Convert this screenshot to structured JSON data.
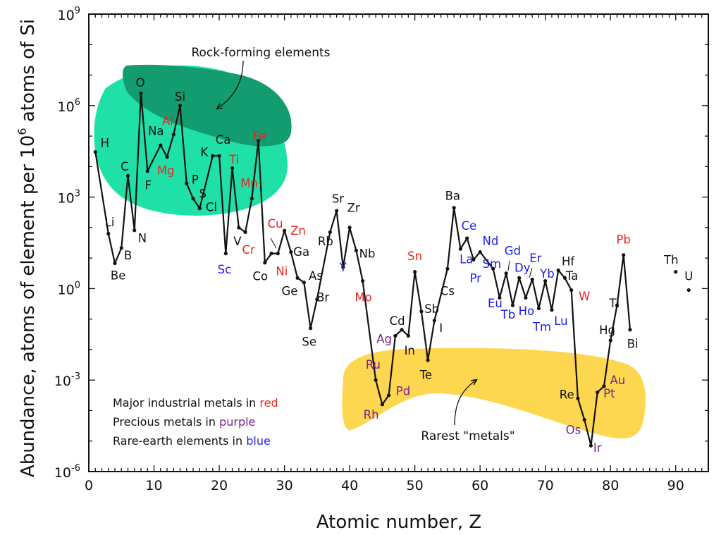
{
  "chart_data": {
    "type": "line",
    "title": "",
    "xlabel": "Atomic number, Z",
    "ylabel_parts": [
      "Abundance, atoms of element per 10",
      "6",
      " atoms of Si"
    ],
    "xlim": [
      0,
      95
    ],
    "ylim_log10": [
      -6,
      9
    ],
    "x_ticks": [
      0,
      10,
      20,
      30,
      40,
      50,
      60,
      70,
      80,
      90
    ],
    "y_ticks": [
      {
        "base": "10",
        "exp": "9",
        "value": 9
      },
      {
        "base": "10",
        "exp": "6",
        "value": 6
      },
      {
        "base": "10",
        "exp": "3",
        "value": 3
      },
      {
        "base": "10",
        "exp": "0",
        "value": 0
      },
      {
        "base": "10",
        "exp": "-3",
        "value": -3
      },
      {
        "base": "10",
        "exp": "-6",
        "value": -6
      }
    ],
    "colors": {
      "standard": "#111111",
      "industrial": "#e8251f",
      "precious": "#7a1f8c",
      "rare_earth": "#1a1ee8",
      "rock_light": "#1fe0a6",
      "rock_dark": "#139c70",
      "rare_metals": "#fed751"
    },
    "series": [
      {
        "name": "main",
        "points": [
          {
            "z": 1,
            "el": "H",
            "log": 4.48,
            "cat": "standard",
            "lx": 1.8,
            "ly": 4.78,
            "anchor": "start"
          },
          {
            "z": 3,
            "el": "Li",
            "log": 1.8,
            "cat": "standard",
            "lx": 3.2,
            "ly": 2.18,
            "anchor": "middle"
          },
          {
            "z": 4,
            "el": "Be",
            "log": 0.83,
            "cat": "standard",
            "lx": 4.5,
            "ly": 0.44,
            "anchor": "middle"
          },
          {
            "z": 5,
            "el": "B",
            "log": 1.33,
            "cat": "standard",
            "lx": 6.0,
            "ly": 1.1,
            "anchor": "middle"
          },
          {
            "z": 6,
            "el": "C",
            "log": 3.7,
            "cat": "standard",
            "lx": 5.5,
            "ly": 4.01,
            "anchor": "middle"
          },
          {
            "z": 7,
            "el": "N",
            "log": 1.91,
            "cat": "standard",
            "lx": 8.2,
            "ly": 1.66,
            "anchor": "middle"
          },
          {
            "z": 8,
            "el": "O",
            "log": 6.4,
            "cat": "standard",
            "lx": 7.9,
            "ly": 6.76,
            "anchor": "middle"
          },
          {
            "z": 9,
            "el": "F",
            "log": 3.85,
            "cat": "standard",
            "lx": 9.1,
            "ly": 3.4,
            "anchor": "middle"
          },
          {
            "z": 11,
            "el": "Na",
            "log": 4.7,
            "cat": "standard",
            "lx": 10.3,
            "ly": 5.18,
            "anchor": "middle"
          },
          {
            "z": 12,
            "el": "Mg",
            "log": 4.32,
            "cat": "industrial",
            "lx": 11.8,
            "ly": 3.88,
            "anchor": "middle"
          },
          {
            "z": 13,
            "el": "Al",
            "log": 5.05,
            "cat": "industrial",
            "lx": 12.1,
            "ly": 5.51,
            "anchor": "middle"
          },
          {
            "z": 14,
            "el": "Si",
            "log": 6.0,
            "cat": "standard",
            "lx": 14.0,
            "ly": 6.3,
            "anchor": "middle"
          },
          {
            "z": 15,
            "el": "P",
            "log": 3.45,
            "cat": "standard",
            "lx": 16.3,
            "ly": 3.58,
            "anchor": "middle"
          },
          {
            "z": 16,
            "el": "S",
            "log": 2.95,
            "cat": "standard",
            "lx": 17.5,
            "ly": 3.12,
            "anchor": "middle"
          },
          {
            "z": 17,
            "el": "Cl",
            "log": 2.63,
            "cat": "standard",
            "lx": 18.8,
            "ly": 2.68,
            "anchor": "middle"
          },
          {
            "z": 19,
            "el": "K",
            "log": 4.35,
            "cat": "standard",
            "lx": 17.7,
            "ly": 4.48,
            "anchor": "middle"
          },
          {
            "z": 20,
            "el": "Ca",
            "log": 4.35,
            "cat": "standard",
            "lx": 20.6,
            "ly": 4.89,
            "anchor": "middle"
          },
          {
            "z": 21,
            "el": "Sc",
            "log": 1.15,
            "cat": "rare_earth",
            "lx": 20.8,
            "ly": 0.63,
            "anchor": "middle"
          },
          {
            "z": 22,
            "el": "Ti",
            "log": 3.95,
            "cat": "industrial",
            "lx": 22.3,
            "ly": 4.24,
            "anchor": "middle"
          },
          {
            "z": 23,
            "el": "V",
            "log": 2.0,
            "cat": "standard",
            "lx": 22.8,
            "ly": 1.56,
            "anchor": "middle"
          },
          {
            "z": 24,
            "el": "Cr",
            "log": 1.85,
            "cat": "industrial",
            "lx": 24.5,
            "ly": 1.28,
            "anchor": "middle"
          },
          {
            "z": 25,
            "el": "Mn",
            "log": 2.95,
            "cat": "industrial",
            "lx": 24.6,
            "ly": 3.46,
            "anchor": "middle"
          },
          {
            "z": 26,
            "el": "Fe",
            "log": 4.85,
            "cat": "industrial",
            "lx": 26.2,
            "ly": 5.01,
            "anchor": "middle"
          },
          {
            "z": 27,
            "el": "Co",
            "log": 0.85,
            "cat": "standard",
            "lx": 26.3,
            "ly": 0.41,
            "anchor": "middle"
          },
          {
            "z": 28,
            "el": "Ni",
            "log": 1.15,
            "cat": "industrial",
            "lx": 29.6,
            "ly": 0.58,
            "anchor": "middle"
          },
          {
            "z": 29,
            "el": "Cu",
            "log": 1.15,
            "cat": "industrial",
            "lx": 28.6,
            "ly": 2.14,
            "anchor": "middle"
          },
          {
            "z": 30,
            "el": "Zn",
            "log": 1.9,
            "cat": "industrial",
            "lx": 32.1,
            "ly": 1.9,
            "anchor": "middle"
          },
          {
            "z": 31,
            "el": "Ga",
            "log": 1.2,
            "cat": "standard",
            "lx": 32.6,
            "ly": 1.21,
            "anchor": "middle"
          },
          {
            "z": 32,
            "el": "Ge",
            "log": 0.35,
            "cat": "standard",
            "lx": 30.8,
            "ly": -0.07,
            "anchor": "middle"
          },
          {
            "z": 33,
            "el": "As",
            "log": 0.2,
            "cat": "standard",
            "lx": 34.8,
            "ly": 0.42,
            "anchor": "middle"
          },
          {
            "z": 34,
            "el": "Se",
            "log": -1.3,
            "cat": "standard",
            "lx": 33.8,
            "ly": -1.74,
            "anchor": "middle"
          },
          {
            "z": 35,
            "el": "Br",
            "log": -0.35,
            "cat": "standard",
            "lx": 35.9,
            "ly": -0.28,
            "anchor": "middle"
          },
          {
            "z": 37,
            "el": "Rb",
            "log": 1.85,
            "cat": "standard",
            "lx": 36.3,
            "ly": 1.56,
            "anchor": "middle"
          },
          {
            "z": 38,
            "el": "Sr",
            "log": 2.55,
            "cat": "standard",
            "lx": 38.2,
            "ly": 2.96,
            "anchor": "middle"
          },
          {
            "z": 39,
            "el": "Y",
            "log": 0.7,
            "cat": "rare_earth",
            "lx": 39.0,
            "ly": 0.7,
            "anchor": "middle"
          },
          {
            "z": 40,
            "el": "Zr",
            "log": 2.0,
            "cat": "standard",
            "lx": 40.6,
            "ly": 2.65,
            "anchor": "middle"
          },
          {
            "z": 41,
            "el": "Nb",
            "log": 1.25,
            "cat": "standard",
            "lx": 42.7,
            "ly": 1.15,
            "anchor": "middle"
          },
          {
            "z": 42,
            "el": "Mo",
            "log": 0.25,
            "cat": "industrial",
            "lx": 42.1,
            "ly": -0.28,
            "anchor": "middle"
          },
          {
            "z": 44,
            "el": "Ru",
            "log": -3.0,
            "cat": "precious",
            "lx": 43.6,
            "ly": -2.49,
            "anchor": "middle"
          },
          {
            "z": 45,
            "el": "Rh",
            "log": -3.8,
            "cat": "precious",
            "lx": 43.3,
            "ly": -4.13,
            "anchor": "middle"
          },
          {
            "z": 46,
            "el": "Pd",
            "log": -3.5,
            "cat": "precious",
            "lx": 48.2,
            "ly": -3.35,
            "anchor": "middle"
          },
          {
            "z": 47,
            "el": "Ag",
            "log": -1.55,
            "cat": "precious",
            "lx": 45.3,
            "ly": -1.64,
            "anchor": "middle"
          },
          {
            "z": 48,
            "el": "Cd",
            "log": -1.35,
            "cat": "standard",
            "lx": 47.3,
            "ly": -1.05,
            "anchor": "middle"
          },
          {
            "z": 49,
            "el": "In",
            "log": -1.55,
            "cat": "standard",
            "lx": 49.2,
            "ly": -2.03,
            "anchor": "middle"
          },
          {
            "z": 50,
            "el": "Sn",
            "log": 0.55,
            "cat": "industrial",
            "lx": 50.0,
            "ly": 1.07,
            "anchor": "middle"
          },
          {
            "z": 51,
            "el": "Sb",
            "log": -0.75,
            "cat": "standard",
            "lx": 52.6,
            "ly": -0.66,
            "anchor": "middle"
          },
          {
            "z": 52,
            "el": "Te",
            "log": -2.35,
            "cat": "standard",
            "lx": 51.7,
            "ly": -2.82,
            "anchor": "middle"
          },
          {
            "z": 53,
            "el": "I",
            "log": -1.05,
            "cat": "standard",
            "lx": 54.0,
            "ly": -1.28,
            "anchor": "middle"
          },
          {
            "z": 55,
            "el": "Cs",
            "log": 0.65,
            "cat": "standard",
            "lx": 55.0,
            "ly": -0.07,
            "anchor": "middle"
          },
          {
            "z": 56,
            "el": "Ba",
            "log": 2.65,
            "cat": "standard",
            "lx": 55.8,
            "ly": 3.05,
            "anchor": "middle"
          },
          {
            "z": 57,
            "el": "La",
            "log": 1.3,
            "cat": "rare_earth",
            "lx": 57.9,
            "ly": 0.97,
            "anchor": "middle"
          },
          {
            "z": 58,
            "el": "Ce",
            "log": 1.65,
            "cat": "rare_earth",
            "lx": 58.3,
            "ly": 2.07,
            "anchor": "middle"
          },
          {
            "z": 59,
            "el": "Pr",
            "log": 0.95,
            "cat": "rare_earth",
            "lx": 59.3,
            "ly": 0.34,
            "anchor": "middle"
          },
          {
            "z": 60,
            "el": "Nd",
            "log": 1.2,
            "cat": "rare_earth",
            "lx": 61.6,
            "ly": 1.57,
            "anchor": "middle"
          },
          {
            "z": 62,
            "el": "Sm",
            "log": 0.65,
            "cat": "rare_earth",
            "lx": 61.8,
            "ly": 0.82,
            "anchor": "middle"
          },
          {
            "z": 63,
            "el": "Eu",
            "log": -0.3,
            "cat": "rare_earth",
            "lx": 62.3,
            "ly": -0.48,
            "anchor": "middle"
          },
          {
            "z": 64,
            "el": "Gd",
            "log": 0.5,
            "cat": "rare_earth",
            "lx": 65.0,
            "ly": 1.25,
            "anchor": "middle"
          },
          {
            "z": 65,
            "el": "Tb",
            "log": -0.55,
            "cat": "rare_earth",
            "lx": 64.3,
            "ly": -0.85,
            "anchor": "middle"
          },
          {
            "z": 66,
            "el": "Dy",
            "log": 0.35,
            "cat": "rare_earth",
            "lx": 66.5,
            "ly": 0.69,
            "anchor": "middle"
          },
          {
            "z": 67,
            "el": "Ho",
            "log": -0.3,
            "cat": "rare_earth",
            "lx": 67.1,
            "ly": -0.73,
            "anchor": "middle"
          },
          {
            "z": 68,
            "el": "Er",
            "log": 0.3,
            "cat": "rare_earth",
            "lx": 68.5,
            "ly": 1.0,
            "anchor": "middle"
          },
          {
            "z": 69,
            "el": "Tm",
            "log": -0.65,
            "cat": "rare_earth",
            "lx": 69.5,
            "ly": -1.25,
            "anchor": "middle"
          },
          {
            "z": 70,
            "el": "Yb",
            "log": 0.25,
            "cat": "rare_earth",
            "lx": 70.3,
            "ly": 0.5,
            "anchor": "middle"
          },
          {
            "z": 71,
            "el": "Lu",
            "log": -0.7,
            "cat": "rare_earth",
            "lx": 72.4,
            "ly": -1.05,
            "anchor": "middle"
          },
          {
            "z": 72,
            "el": "Hf",
            "log": 0.6,
            "cat": "standard",
            "lx": 73.5,
            "ly": 0.9,
            "anchor": "middle"
          },
          {
            "z": 73,
            "el": "Ta",
            "log": 0.35,
            "cat": "standard",
            "lx": 74.1,
            "ly": 0.43,
            "anchor": "middle"
          },
          {
            "z": 74,
            "el": "W",
            "log": -0.05,
            "cat": "industrial",
            "lx": 76.0,
            "ly": -0.25,
            "anchor": "middle"
          },
          {
            "z": 75,
            "el": "Re",
            "log": -3.6,
            "cat": "standard",
            "lx": 73.3,
            "ly": -3.47,
            "anchor": "middle"
          },
          {
            "z": 76,
            "el": "Os",
            "log": -4.3,
            "cat": "precious",
            "lx": 74.3,
            "ly": -4.62,
            "anchor": "middle"
          },
          {
            "z": 77,
            "el": "Ir",
            "log": -5.15,
            "cat": "precious",
            "lx": 78.0,
            "ly": -5.21,
            "anchor": "middle"
          },
          {
            "z": 78,
            "el": "Pt",
            "log": -3.4,
            "cat": "precious",
            "lx": 79.8,
            "ly": -3.44,
            "anchor": "middle"
          },
          {
            "z": 79,
            "el": "Au",
            "log": -3.2,
            "cat": "precious",
            "lx": 81.1,
            "ly": -2.99,
            "anchor": "middle"
          },
          {
            "z": 80,
            "el": "Hg",
            "log": -1.7,
            "cat": "standard",
            "lx": 79.5,
            "ly": -1.36,
            "anchor": "middle"
          },
          {
            "z": 81,
            "el": "Tl",
            "log": -0.55,
            "cat": "standard",
            "lx": 80.6,
            "ly": -0.48,
            "anchor": "middle"
          },
          {
            "z": 82,
            "el": "Pb",
            "log": 1.1,
            "cat": "industrial",
            "lx": 82.0,
            "ly": 1.62,
            "anchor": "middle"
          },
          {
            "z": 83,
            "el": "Bi",
            "log": -1.35,
            "cat": "standard",
            "lx": 83.4,
            "ly": -1.81,
            "anchor": "middle"
          }
        ]
      },
      {
        "name": "isolated",
        "points": [
          {
            "z": 90,
            "el": "Th",
            "log": 0.55,
            "cat": "standard",
            "lx": 89.3,
            "ly": 0.94,
            "anchor": "middle"
          },
          {
            "z": 92,
            "el": "U",
            "log": -0.05,
            "cat": "standard",
            "lx": 92.0,
            "ly": 0.41,
            "anchor": "middle"
          }
        ]
      }
    ],
    "annotations": {
      "rock_forming": "Rock-forming elements",
      "rarest_metals": "Rarest \"metals\""
    },
    "legend": [
      {
        "prefix": "Major industrial metals in ",
        "word": "red",
        "cat": "industrial"
      },
      {
        "prefix": "Precious metals in ",
        "word": "purple",
        "cat": "precious"
      },
      {
        "prefix": "Rare-earth elements in ",
        "word": "blue",
        "cat": "rare_earth"
      }
    ]
  }
}
